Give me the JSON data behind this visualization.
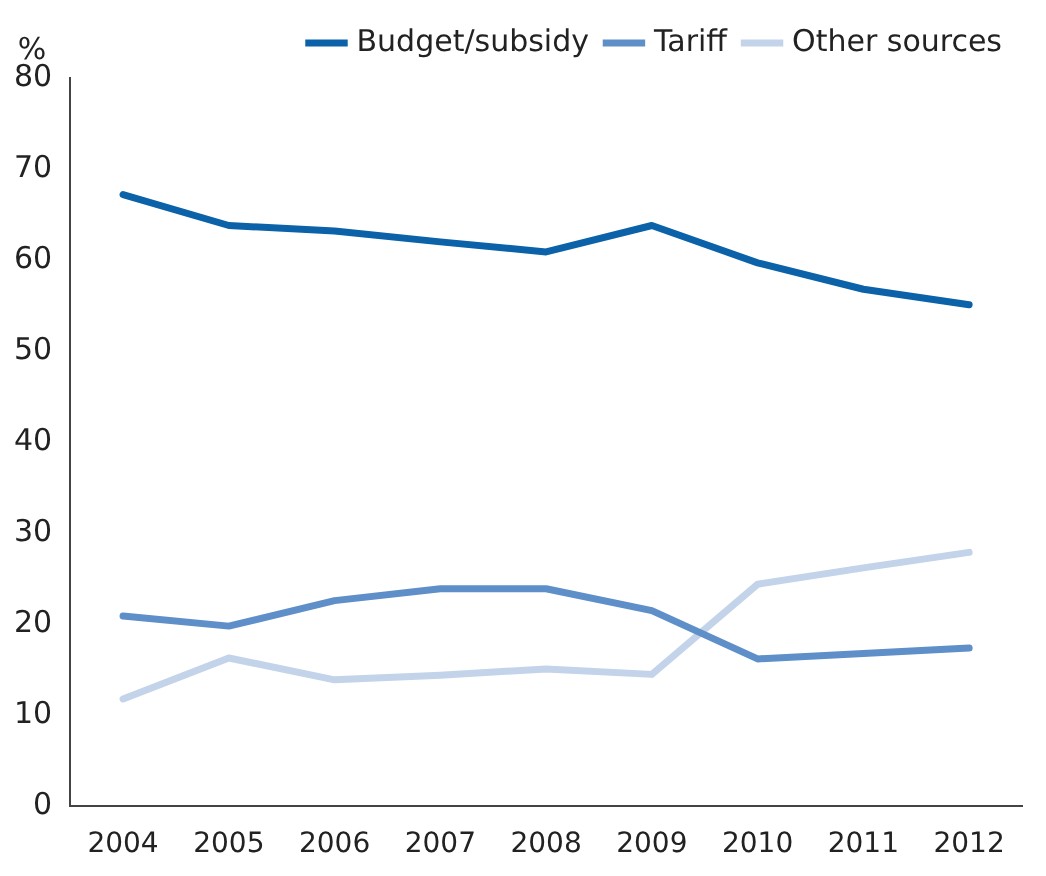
{
  "chart_data": {
    "type": "line",
    "ylabel": "%",
    "categories": [
      "2004",
      "2005",
      "2006",
      "2007",
      "2008",
      "2009",
      "2010",
      "2011",
      "2012"
    ],
    "series": [
      {
        "name": "Budget/subsidy",
        "color": "#0b62a8",
        "values": [
          67.2,
          63.8,
          63.2,
          62,
          60.9,
          63.8,
          59.7,
          56.8,
          55.1
        ]
      },
      {
        "name": "Tariff",
        "color": "#5e8fc8",
        "values": [
          20.9,
          19.8,
          22.6,
          23.9,
          23.9,
          21.5,
          16.2,
          16.8,
          17.4
        ]
      },
      {
        "name": "Other sources",
        "color": "#c3d3ea",
        "values": [
          11.8,
          16.3,
          13.9,
          14.4,
          15.1,
          14.5,
          24.4,
          26.2,
          27.9
        ]
      }
    ],
    "ylim": [
      0,
      80
    ],
    "yticks": [
      0,
      10,
      20,
      30,
      40,
      50,
      60,
      70,
      80
    ],
    "grid": false,
    "legend": "top",
    "marker": "none",
    "line_style": "solid"
  }
}
